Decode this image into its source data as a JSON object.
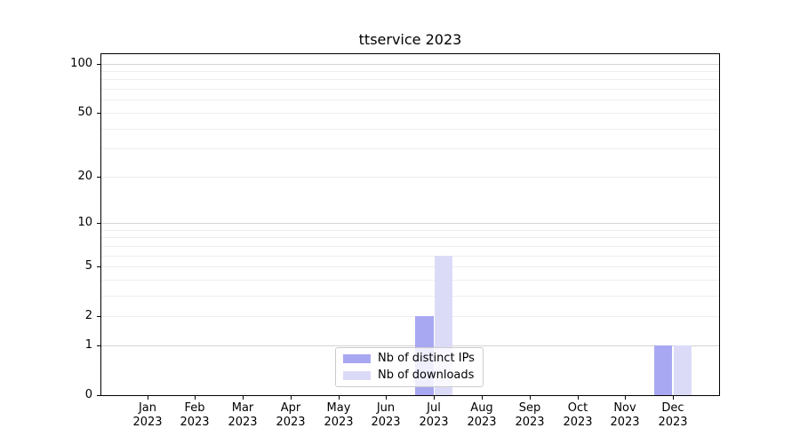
{
  "chart_data": {
    "type": "bar",
    "title": "ttservice 2023",
    "categories": [
      "Jan 2023",
      "Feb 2023",
      "Mar 2023",
      "Apr 2023",
      "May 2023",
      "Jun 2023",
      "Jul 2023",
      "Aug 2023",
      "Sep 2023",
      "Oct 2023",
      "Nov 2023",
      "Dec 2023"
    ],
    "series": [
      {
        "name": "Nb of distinct IPs",
        "color": "#a8a8f2",
        "values": [
          0,
          0,
          0,
          0,
          0,
          0,
          2,
          0,
          0,
          0,
          0,
          1
        ]
      },
      {
        "name": "Nb of downloads",
        "color": "#dbdbf8",
        "values": [
          0,
          0,
          0,
          0,
          0,
          0,
          6,
          0,
          0,
          0,
          0,
          1
        ]
      }
    ],
    "xlabel": "",
    "ylabel": "",
    "yticks": [
      0,
      1,
      2,
      5,
      10,
      20,
      50,
      100
    ],
    "ylim": [
      0,
      114
    ],
    "yscale": "log10(1+y)",
    "grid": "horizontal major and minor gridlines",
    "grid_major_color": "#d4d4d4",
    "grid_minor_color": "#eeeeef",
    "legend_position": "lower center inside axes",
    "background_color": "#ffffff",
    "spine_color": "#000000"
  }
}
